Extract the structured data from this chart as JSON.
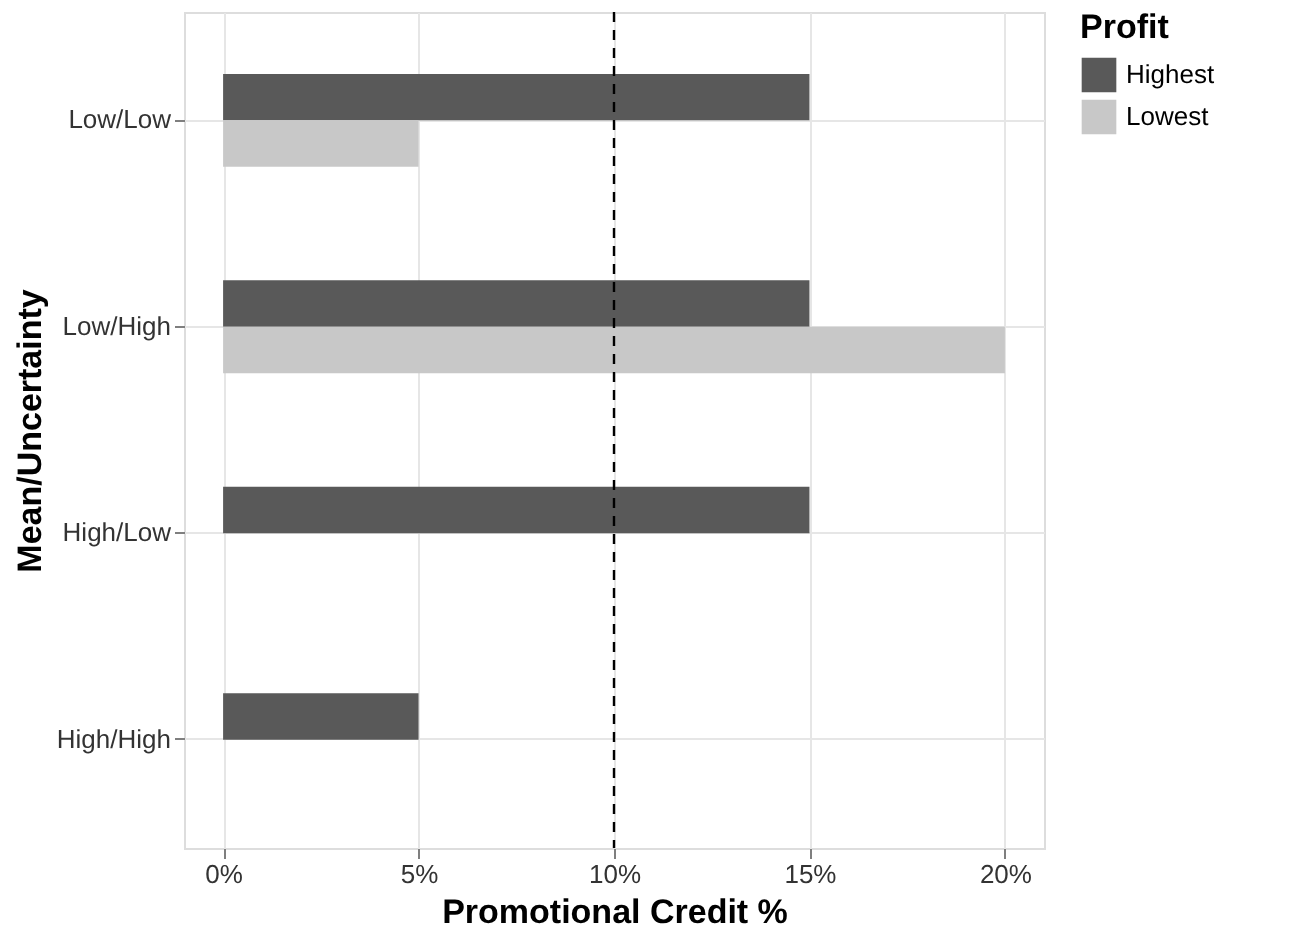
{
  "chart_data": {
    "type": "bar",
    "orientation": "horizontal",
    "xlabel": "Promotional Credit %",
    "ylabel": "Mean/Uncertainty",
    "legend_title": "Profit",
    "categories": [
      "Low/Low",
      "Low/High",
      "High/Low",
      "High/High"
    ],
    "series": [
      {
        "name": "Highest",
        "color": "#595959",
        "values": [
          15,
          15,
          15,
          5
        ]
      },
      {
        "name": "Lowest",
        "color": "#c8c8c8",
        "values": [
          5,
          20,
          0,
          0
        ]
      }
    ],
    "xlim": [
      -1,
      21
    ],
    "xticks": [
      {
        "value": 0,
        "label": "0%"
      },
      {
        "value": 5,
        "label": "5%"
      },
      {
        "value": 10,
        "label": "10%"
      },
      {
        "value": 15,
        "label": "15%"
      },
      {
        "value": 20,
        "label": "20%"
      }
    ],
    "ref_lines": [
      {
        "axis": "x",
        "value": 10,
        "line_style": "dashed",
        "color": "#000000"
      }
    ],
    "grid": true,
    "legend": "right"
  }
}
